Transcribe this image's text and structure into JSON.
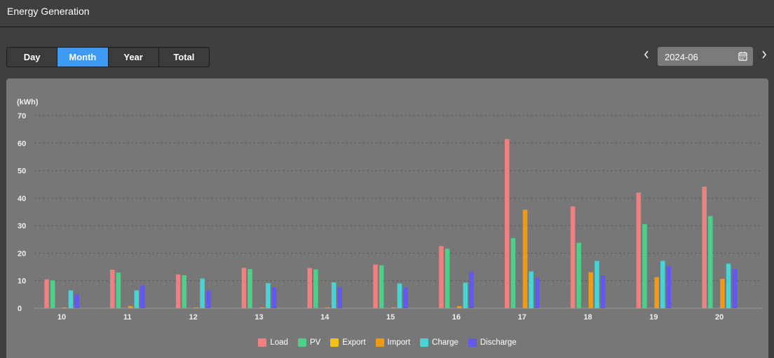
{
  "header": {
    "title": "Energy Generation"
  },
  "tabs": [
    {
      "label": "Day",
      "active": false
    },
    {
      "label": "Month",
      "active": true
    },
    {
      "label": "Year",
      "active": false
    },
    {
      "label": "Total",
      "active": false
    }
  ],
  "date_picker": {
    "value": "2024-06",
    "prev_icon": "chevron-left-icon",
    "next_icon": "chevron-right-icon",
    "calendar_icon": "calendar-icon"
  },
  "chart_data": {
    "type": "bar",
    "ylabel": "(kWh)",
    "ylim": [
      0,
      70
    ],
    "yticks": [
      0,
      10,
      20,
      30,
      40,
      50,
      60,
      70
    ],
    "grid": true,
    "legend_position": "bottom-center",
    "categories": [
      "10",
      "11",
      "12",
      "13",
      "14",
      "15",
      "16",
      "17",
      "18",
      "19",
      "20"
    ],
    "series": [
      {
        "name": "Load",
        "color": "#f07f80",
        "values": [
          10.5,
          14,
          12.3,
          14.7,
          14.6,
          15.9,
          22.6,
          61.5,
          37,
          42,
          44.2
        ]
      },
      {
        "name": "PV",
        "color": "#4cd089",
        "values": [
          10.1,
          13,
          12,
          14.2,
          14.1,
          15.6,
          21.6,
          25.5,
          23.8,
          30.6,
          33.5
        ]
      },
      {
        "name": "Export",
        "color": "#f3c218",
        "values": [
          0,
          0,
          0,
          0,
          0,
          0,
          0,
          0,
          0,
          0,
          0
        ]
      },
      {
        "name": "Import",
        "color": "#f09a16",
        "values": [
          0.3,
          0.8,
          0.3,
          0.3,
          0.3,
          0.3,
          0.8,
          35.8,
          13.1,
          11.3,
          10.7
        ]
      },
      {
        "name": "Charge",
        "color": "#48d4d4",
        "values": [
          6.5,
          6.5,
          10.8,
          9.1,
          9.4,
          9,
          9.3,
          13.4,
          17.2,
          17.2,
          16.2
        ]
      },
      {
        "name": "Discharge",
        "color": "#6358f0",
        "values": [
          5,
          8.2,
          6.5,
          7.6,
          7.7,
          7.5,
          13.3,
          11,
          11.9,
          15.3,
          14.2
        ]
      }
    ]
  }
}
